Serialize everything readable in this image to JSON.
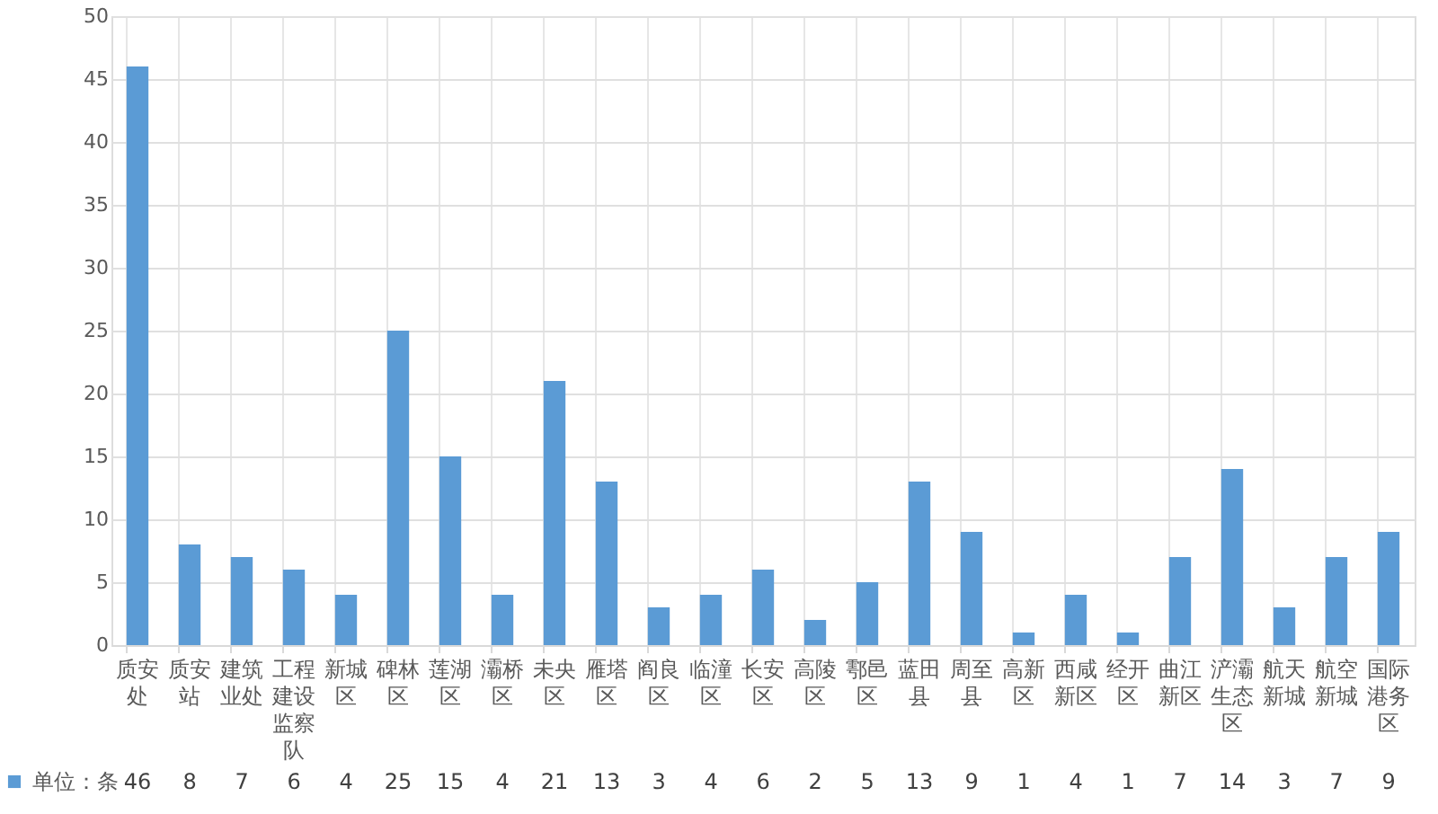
{
  "chart_data": {
    "type": "bar",
    "categories": [
      "质安处",
      "质安站",
      "建筑业处",
      "工程建设监察队",
      "新城区",
      "碑林区",
      "莲湖区",
      "灞桥区",
      "未央区",
      "雁塔区",
      "阎良区",
      "临潼区",
      "长安区",
      "高陵区",
      "鄠邑区",
      "蓝田县",
      "周至县",
      "高新区",
      "西咸新区",
      "经开区",
      "曲江新区",
      "浐灞生态区",
      "航天新城",
      "航空新城",
      "国际港务区"
    ],
    "series": [
      {
        "name": "单位：条",
        "color": "#5b9bd5",
        "values": [
          46,
          8,
          7,
          6,
          4,
          25,
          15,
          4,
          21,
          13,
          3,
          4,
          6,
          2,
          5,
          13,
          9,
          1,
          4,
          1,
          7,
          14,
          3,
          7,
          9
        ]
      }
    ],
    "ylim": [
      0,
      50
    ],
    "yticks": [
      0,
      5,
      10,
      15,
      20,
      25,
      30,
      35,
      40,
      45,
      50
    ],
    "grid": "y",
    "legend": "bottom left",
    "data_labels": true
  }
}
